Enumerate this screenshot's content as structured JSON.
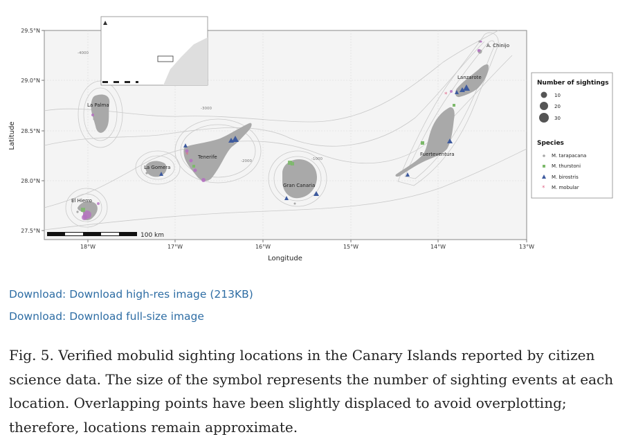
{
  "map": {
    "axis": {
      "x_title": "Longitude",
      "y_title": "Latitude",
      "lon_ticks": [
        "18°W",
        "17°W",
        "16°W",
        "15°W",
        "14°W",
        "13°W"
      ],
      "lat_ticks": [
        "29.5°N",
        "29.0°N",
        "28.5°N",
        "28.0°N",
        "27.5°N"
      ]
    },
    "islands": {
      "la_palma": "La Palma",
      "el_hierro": "El Hierro",
      "la_gomera": "La Gomera",
      "tenerife": "Tenerife",
      "gran_canaria": "Gran Canaria",
      "fuerteventura": "Fuerteventura",
      "lanzarote": "Lanzarote",
      "chinijo": "A. Chinijo"
    },
    "depth_labels": {
      "d4000": "-4000",
      "d3000": "-3000",
      "d2000": "-2000",
      "d1000": "-1000"
    },
    "scale_bar": "100 km",
    "legend": {
      "size_title": "Number of sightings",
      "sizes": [
        "10",
        "20",
        "30"
      ],
      "species_title": "Species",
      "species": [
        {
          "name": "M. tarapacana",
          "color": "#a8a8a8",
          "shape": "circle"
        },
        {
          "name": "M. thurstoni",
          "color": "#7cb96a",
          "shape": "square"
        },
        {
          "name": "M. birostris",
          "color": "#3d5a9e",
          "shape": "triangle"
        },
        {
          "name": "M. mobular",
          "color": "#e06a8a",
          "shape": "star"
        }
      ]
    },
    "colors": {
      "land": "#a9a9a9",
      "panel_bg": "#f4f4f4",
      "contour": "#c9c9c9",
      "grid": "#d8d8d8",
      "mobular_alt": "#b56fc2"
    }
  },
  "links": {
    "highres": "Download: Download high-res image (213KB)",
    "full": "Download: Download full-size image"
  },
  "caption": "Fig. 5. Verified mobulid sighting locations in the Canary Islands reported by citizen science data. The size of the symbol represents the number of sighting events at each location. Overlapping points have been slightly displaced to avoid overplotting; therefore, locations remain approximate."
}
